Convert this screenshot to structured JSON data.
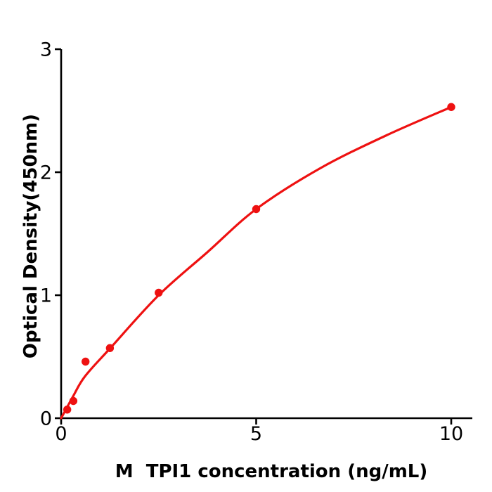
{
  "figure": {
    "background": "#ffffff",
    "axis_color": "#000000",
    "accent_color": "#ee1111"
  },
  "chart_data": {
    "type": "scatter",
    "title": "",
    "xlabel": "M  TPI1 concentration (ng/mL)",
    "ylabel": "Optical Density(450nm)",
    "xlim": [
      0,
      10.54
    ],
    "ylim": [
      0,
      3
    ],
    "x_ticks": [
      0,
      5,
      10
    ],
    "y_ticks": [
      0,
      1,
      2,
      3
    ],
    "grid": false,
    "legend": null,
    "series": [
      {
        "name": "standard-points",
        "type": "scatter",
        "color": "#ee1111",
        "marker": "circle",
        "marker_radius": 5.7,
        "points": [
          {
            "x": 0.156,
            "y": 0.07
          },
          {
            "x": 0.313,
            "y": 0.14
          },
          {
            "x": 0.625,
            "y": 0.46
          },
          {
            "x": 1.25,
            "y": 0.57
          },
          {
            "x": 2.5,
            "y": 1.02
          },
          {
            "x": 5,
            "y": 1.7
          },
          {
            "x": 10,
            "y": 2.53
          }
        ]
      },
      {
        "name": "fit-curve",
        "type": "line",
        "color": "#ee1111",
        "line_width": 3.2,
        "points": [
          {
            "x": 0,
            "y": 0.0
          },
          {
            "x": 0.31,
            "y": 0.18
          },
          {
            "x": 0.61,
            "y": 0.34
          },
          {
            "x": 1.26,
            "y": 0.57
          },
          {
            "x": 2.5,
            "y": 1.0
          },
          {
            "x": 3.75,
            "y": 1.35
          },
          {
            "x": 5.0,
            "y": 1.7
          },
          {
            "x": 6.63,
            "y": 2.03
          },
          {
            "x": 8.34,
            "y": 2.3
          },
          {
            "x": 10.0,
            "y": 2.53
          }
        ]
      }
    ]
  }
}
